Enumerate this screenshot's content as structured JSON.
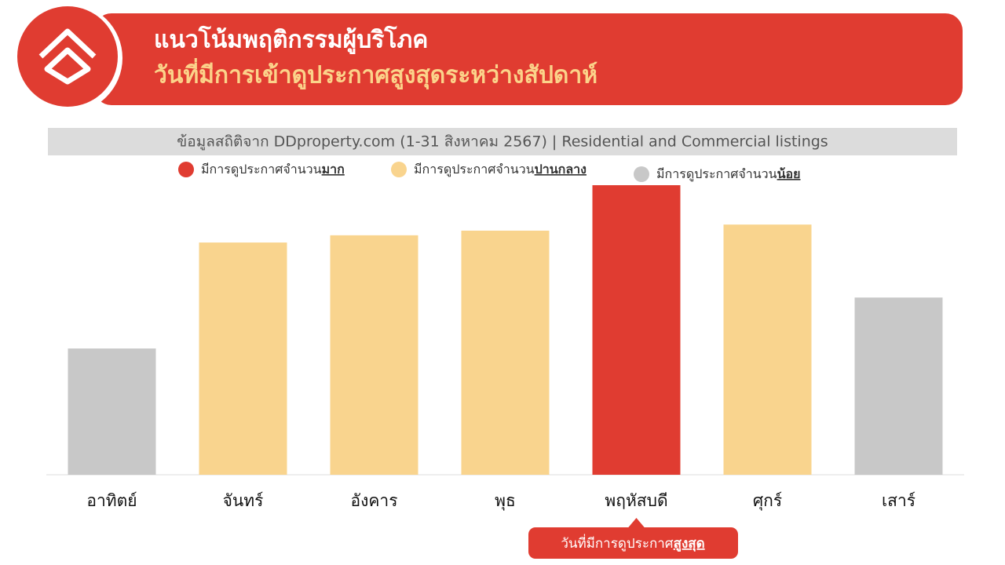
{
  "header": {
    "title": "แนวโน้มพฤติกรรมผู้บริโภค",
    "subtitle": "วันที่มีการเข้าดูประกาศสูงสุดระหว่างสัปดาห์"
  },
  "chart_data": {
    "type": "bar",
    "subtitle": "ข้อมูลสถิติจาก DDproperty.com (1-31 สิงหาคม 2567) | Residential and Commercial listings",
    "legend": [
      {
        "label": "มีการดูประกาศจำนวน",
        "emphasis": "มาก",
        "color": "#e03c31"
      },
      {
        "label": "มีการดูประกาศจำนวน",
        "emphasis": "ปานกลาง",
        "color": "#f9d48e"
      },
      {
        "label": "มีการดูประกาศจำนวน",
        "emphasis": "น้อย",
        "color": "#c8c8c8"
      }
    ],
    "categories": [
      "อาทิตย์",
      "จันทร์",
      "อังคาร",
      "พุธ",
      "พฤหัสบดี",
      "ศุกร์",
      "เสาร์"
    ],
    "values": [
      43.6,
      80.2,
      82.7,
      84.3,
      100,
      86.4,
      61.2
    ],
    "colors": [
      "#c8c8c8",
      "#f9d48e",
      "#f9d48e",
      "#f9d48e",
      "#e03c31",
      "#f9d48e",
      "#c8c8c8"
    ],
    "ylim": [
      0,
      100
    ],
    "annotation": {
      "label": "วันที่มีการดูประกาศ",
      "emphasis": "สูงสุด"
    }
  }
}
